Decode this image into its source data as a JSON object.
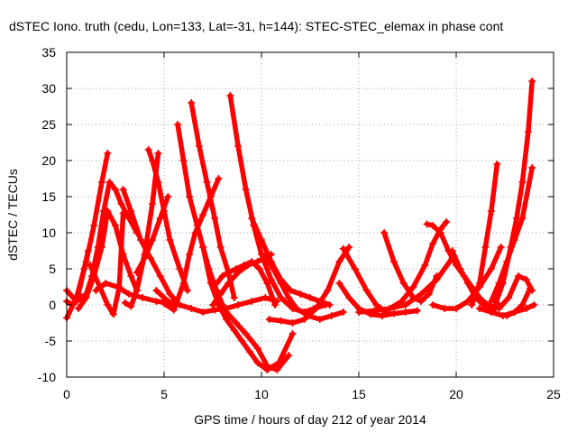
{
  "chart_data": {
    "type": "scatter",
    "title": "dSTEC Iono. truth (cedu, Lon=133, Lat=-31, h=144): STEC-STEC_elemax in phase cont",
    "xlabel": "GPS time / hours of day 212 of year 2014",
    "ylabel": "dSTEC  / TECUs",
    "xlim": [
      0,
      25
    ],
    "ylim": [
      -10,
      35
    ],
    "xticks": [
      "0",
      "5",
      "10",
      "15",
      "20",
      "25"
    ],
    "yticks": [
      "-10",
      "-5",
      "0",
      "5",
      "10",
      "15",
      "20",
      "25",
      "30",
      "35"
    ],
    "grid": true,
    "marker": "plus",
    "color": "#ff0000",
    "series": [
      {
        "x": [
          0.0,
          0.5,
          1.0,
          1.4,
          1.8,
          2.1
        ],
        "y": [
          -1.8,
          1.0,
          6.0,
          11.0,
          17.0,
          21.0
        ]
      },
      {
        "x": [
          0.0,
          0.5,
          1.0,
          1.3,
          1.6,
          1.9,
          2.2,
          2.5,
          2.8,
          3.2,
          3.6
        ],
        "y": [
          2.0,
          0.5,
          1.5,
          4.0,
          8.0,
          13.0,
          17.0,
          16.0,
          14.0,
          12.0,
          10.0
        ]
      },
      {
        "x": [
          0.0,
          0.3,
          0.6,
          0.9,
          1.1
        ],
        "y": [
          0.5,
          0.0,
          1.5,
          5.0,
          7.5
        ]
      },
      {
        "x": [
          0.6,
          1.0,
          1.4,
          1.8,
          2.1,
          2.5,
          2.9,
          3.3,
          3.6
        ],
        "y": [
          -0.5,
          1.0,
          4.0,
          8.0,
          13.0,
          11.0,
          7.0,
          4.0,
          2.0
        ]
      },
      {
        "x": [
          1.2,
          1.7,
          2.1,
          2.4,
          2.7,
          2.9
        ],
        "y": [
          5.5,
          2.5,
          0.0,
          -1.3,
          2.5,
          12.7
        ]
      },
      {
        "x": [
          1.5,
          2.0,
          2.6,
          3.2,
          3.9,
          4.6,
          5.2,
          5.6
        ],
        "y": [
          2.0,
          3.0,
          2.5,
          1.5,
          1.0,
          0.5,
          0.3,
          0.0
        ]
      },
      {
        "x": [
          2.9,
          3.3,
          3.8,
          4.3,
          4.8,
          5.3,
          5.8
        ],
        "y": [
          16.0,
          13.0,
          9.0,
          6.5,
          4.0,
          1.5,
          0.0
        ]
      },
      {
        "x": [
          3.0,
          3.3,
          3.6,
          4.0,
          4.4,
          4.7
        ],
        "y": [
          0.3,
          -0.2,
          2.0,
          7.0,
          14.0,
          21.0
        ]
      },
      {
        "x": [
          3.6,
          4.0,
          4.4,
          4.8,
          5.2
        ],
        "y": [
          4.5,
          6.5,
          9.0,
          12.0,
          15.0
        ]
      },
      {
        "x": [
          4.2,
          4.4,
          4.7,
          5.0,
          5.3,
          5.8,
          6.2
        ],
        "y": [
          21.5,
          20.0,
          17.0,
          13.0,
          9.0,
          5.0,
          2.0
        ]
      },
      {
        "x": [
          4.6,
          5.2,
          5.8,
          6.4,
          7.0,
          7.6,
          8.2,
          8.8,
          9.5,
          10.2,
          10.8
        ],
        "y": [
          2.0,
          0.5,
          0.0,
          -0.5,
          -1.0,
          -0.7,
          -0.5,
          0.0,
          0.5,
          1.0,
          0.5
        ]
      },
      {
        "x": [
          5.0,
          5.5,
          6.0,
          6.3,
          6.6,
          7.0,
          7.4,
          7.8
        ],
        "y": [
          0.2,
          -0.7,
          3.0,
          7.0,
          10.0,
          12.5,
          15.0,
          17.5
        ]
      },
      {
        "x": [
          5.7,
          6.0,
          6.3,
          6.7,
          7.0,
          7.3,
          7.7,
          8.0
        ],
        "y": [
          25.0,
          20.0,
          15.0,
          11.0,
          8.0,
          5.0,
          2.0,
          0.0
        ]
      },
      {
        "x": [
          6.4,
          6.8,
          7.2,
          7.6,
          7.9,
          8.3,
          8.6
        ],
        "y": [
          28.0,
          22.0,
          17.0,
          12.0,
          8.0,
          4.5,
          1.0
        ]
      },
      {
        "x": [
          7.0,
          7.4,
          7.8,
          8.2,
          8.6,
          9.0,
          9.4,
          9.8,
          10.3,
          10.9,
          11.6
        ],
        "y": [
          8.0,
          3.0,
          0.0,
          -2.0,
          -3.5,
          -5.0,
          -6.5,
          -8.0,
          -9.0,
          -8.0,
          -4.0
        ]
      },
      {
        "x": [
          7.5,
          7.9,
          8.3,
          8.8,
          9.3,
          9.8,
          10.2,
          10.5
        ],
        "y": [
          0.0,
          1.5,
          3.0,
          4.5,
          5.5,
          6.0,
          6.5,
          7.0
        ]
      },
      {
        "x": [
          8.4,
          8.8,
          9.2,
          9.6,
          10.0,
          10.5,
          11.0,
          11.6,
          12.2,
          12.7,
          13.3
        ],
        "y": [
          29.0,
          22.0,
          16.0,
          11.0,
          7.0,
          3.5,
          1.0,
          -0.5,
          -1.0,
          -0.5,
          0.0
        ]
      },
      {
        "x": [
          7.7,
          8.0,
          8.3,
          8.7,
          9.1,
          9.5,
          9.9,
          10.3,
          10.7
        ],
        "y": [
          3.0,
          4.0,
          4.5,
          5.0,
          5.5,
          6.0,
          5.0,
          3.0,
          0.0
        ]
      },
      {
        "x": [
          7.8,
          8.2,
          8.7,
          9.2,
          9.8,
          10.3,
          10.8,
          11.4
        ],
        "y": [
          0.0,
          -1.0,
          -2.5,
          -4.0,
          -6.0,
          -8.5,
          -9.0,
          -7.0
        ]
      },
      {
        "x": [
          9.5,
          10.0,
          10.5,
          11.0,
          11.5,
          12.0,
          12.5,
          13.0,
          13.5
        ],
        "y": [
          12.0,
          9.0,
          6.0,
          3.5,
          2.0,
          1.5,
          1.0,
          0.5,
          0.0
        ]
      },
      {
        "x": [
          10.2,
          10.6,
          11.0,
          11.4,
          11.8,
          12.4,
          13.0,
          13.6,
          14.2
        ],
        "y": [
          7.0,
          5.0,
          3.0,
          1.0,
          -0.5,
          -1.5,
          -2.0,
          -1.5,
          -1.0
        ]
      },
      {
        "x": [
          10.4,
          11.0,
          11.6,
          12.2,
          12.8,
          13.4,
          14.0,
          14.5
        ],
        "y": [
          -2.0,
          -2.2,
          -2.5,
          -2.0,
          -0.5,
          2.0,
          6.0,
          8.0
        ]
      },
      {
        "x": [
          14.0,
          14.5,
          15.0,
          15.6,
          16.2,
          16.8,
          17.4,
          18.0
        ],
        "y": [
          3.0,
          1.0,
          -0.5,
          -1.3,
          -1.5,
          -1.2,
          -1.0,
          -0.8
        ]
      },
      {
        "x": [
          14.2,
          14.8,
          15.4,
          15.9,
          16.4
        ],
        "y": [
          7.8,
          5.0,
          2.0,
          0.0,
          -1.0
        ]
      },
      {
        "x": [
          15.0,
          15.8,
          16.6,
          17.4,
          18.2,
          19.0,
          19.8
        ],
        "y": [
          -1.0,
          -0.8,
          -0.5,
          0.0,
          1.5,
          3.5,
          6.5
        ]
      },
      {
        "x": [
          16.3,
          16.8,
          17.3,
          17.8,
          18.2,
          18.6,
          19.0
        ],
        "y": [
          10.0,
          6.0,
          3.0,
          1.0,
          0.5,
          1.5,
          4.0
        ]
      },
      {
        "x": [
          16.6,
          17.2,
          17.8,
          18.4,
          18.8,
          19.2,
          19.5
        ],
        "y": [
          -0.5,
          0.5,
          2.5,
          5.5,
          8.5,
          10.5,
          11.5
        ]
      },
      {
        "x": [
          18.5,
          18.8,
          19.2,
          19.6,
          20.0,
          20.4,
          20.8,
          21.2,
          21.6,
          22.0
        ],
        "y": [
          11.2,
          11.0,
          10.0,
          7.5,
          5.5,
          4.0,
          2.5,
          1.0,
          0.0,
          -0.5
        ]
      },
      {
        "x": [
          18.8,
          19.4,
          20.0,
          20.6,
          21.2,
          21.8,
          22.3
        ],
        "y": [
          0.0,
          -0.5,
          -0.5,
          0.5,
          2.5,
          5.0,
          8.0
        ]
      },
      {
        "x": [
          19.8,
          20.2,
          20.6,
          21.0,
          21.4,
          21.8,
          22.2
        ],
        "y": [
          7.5,
          5.0,
          3.0,
          1.0,
          0.0,
          -0.3,
          0.0
        ]
      },
      {
        "x": [
          20.8,
          21.2,
          21.5,
          21.8,
          22.1
        ],
        "y": [
          0.0,
          3.0,
          8.0,
          13.0,
          19.5
        ]
      },
      {
        "x": [
          21.2,
          21.8,
          22.4,
          23.0,
          23.6,
          24.0
        ],
        "y": [
          -0.5,
          -1.0,
          -1.5,
          -1.0,
          -0.5,
          0.0
        ]
      },
      {
        "x": [
          21.8,
          22.2,
          22.6,
          23.0,
          23.4,
          23.9
        ],
        "y": [
          0.5,
          3.0,
          6.0,
          9.0,
          12.0,
          19.0
        ]
      },
      {
        "x": [
          22.0,
          22.4,
          22.8,
          23.1,
          23.4,
          23.7,
          23.9
        ],
        "y": [
          0.0,
          3.0,
          8.0,
          12.0,
          17.0,
          24.0,
          31.0
        ]
      },
      {
        "x": [
          22.2,
          22.7,
          23.2,
          23.6,
          23.9
        ],
        "y": [
          -0.5,
          1.0,
          4.0,
          3.5,
          2.0
        ]
      },
      {
        "x": [
          22.6,
          23.0,
          23.4,
          23.8
        ],
        "y": [
          -1.5,
          -1.0,
          0.0,
          2.3
        ]
      }
    ]
  }
}
